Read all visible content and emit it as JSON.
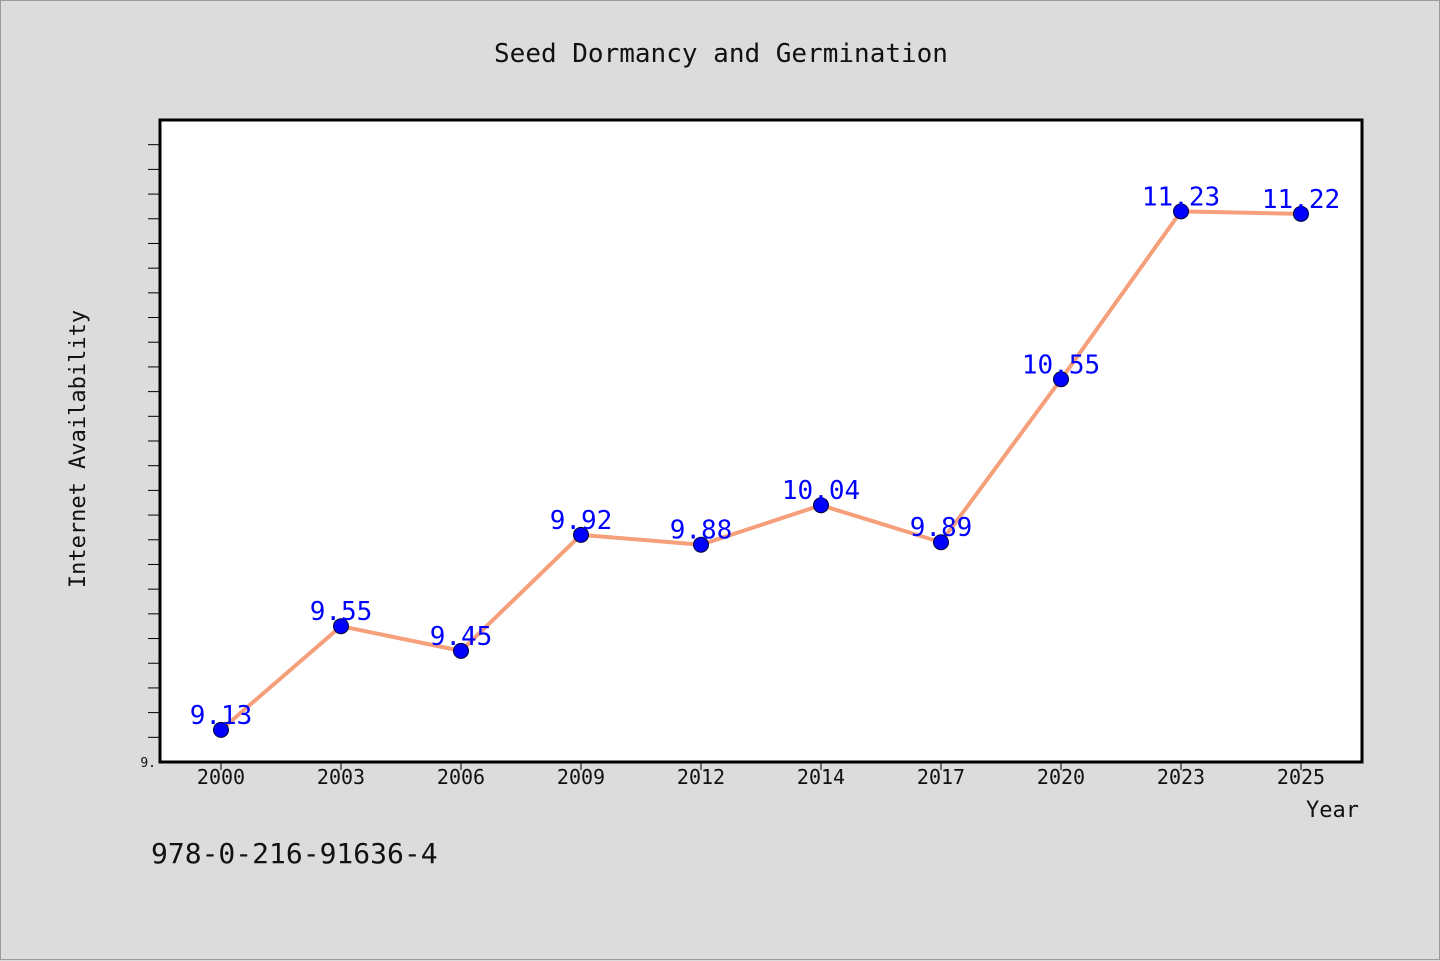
{
  "chart_data": {
    "type": "line",
    "title": "Seed Dormancy and Germination",
    "xlabel": "Year",
    "ylabel": "Internet Availability",
    "categories": [
      "2000",
      "2003",
      "2006",
      "2009",
      "2012",
      "2014",
      "2017",
      "2020",
      "2023",
      "2025"
    ],
    "series": [
      {
        "values": [
          9.13,
          9.55,
          9.45,
          9.92,
          9.88,
          10.04,
          9.89,
          10.55,
          11.23,
          11.22
        ],
        "labels": [
          "9.13",
          "9.55",
          "9.45",
          "9.92",
          "9.88",
          "10.04",
          "9.89",
          "10.55",
          "11.23",
          "11.22"
        ]
      }
    ],
    "ylim": [
      9.0,
      11.6
    ],
    "y_tick_label": "9.",
    "grid": false,
    "legend": "none",
    "colors": {
      "line": "#f5a07a",
      "marker": "#0000ff",
      "data_label": "#0000ff",
      "plot_bg": "#ffffff",
      "page_bg": "#dcdcdc"
    }
  },
  "footer": {
    "isbn": "978-0-216-91636-4"
  }
}
